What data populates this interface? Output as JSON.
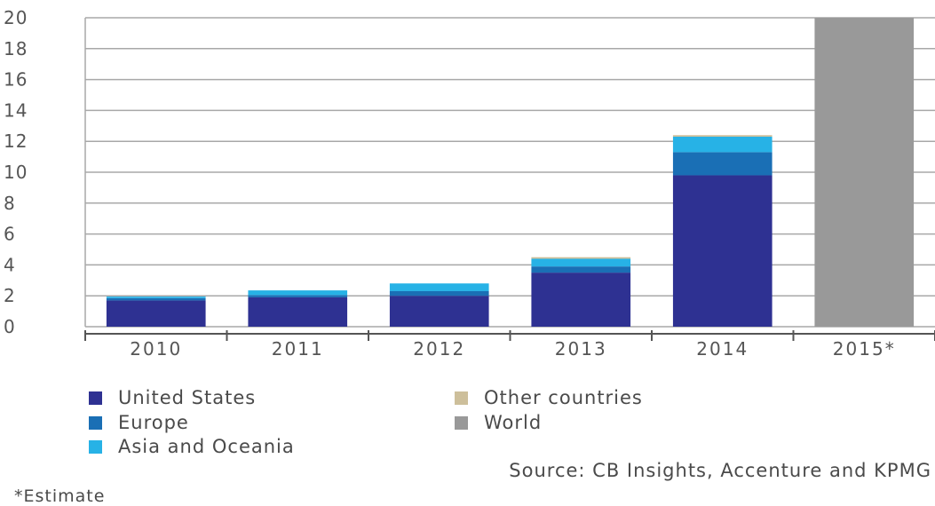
{
  "chart_data": {
    "type": "bar",
    "stacked": true,
    "categories": [
      "2010",
      "2011",
      "2012",
      "2013",
      "2014",
      "2015*"
    ],
    "series": [
      {
        "name": "United States",
        "color": "#2e3192",
        "values": [
          1.7,
          1.9,
          2.0,
          3.5,
          9.8,
          0
        ]
      },
      {
        "name": "Europe",
        "color": "#1a6fb5",
        "values": [
          0.15,
          0.15,
          0.3,
          0.4,
          1.5,
          0
        ]
      },
      {
        "name": "Asia and Oceania",
        "color": "#27b2e6",
        "values": [
          0.1,
          0.3,
          0.5,
          0.5,
          1.0,
          0
        ]
      },
      {
        "name": "Other countries",
        "color": "#cdbf9b",
        "values": [
          0.0,
          0.0,
          0.0,
          0.1,
          0.1,
          0
        ]
      },
      {
        "name": "World",
        "color": "#999999",
        "values": [
          0,
          0,
          0,
          0,
          0,
          20
        ]
      }
    ],
    "ylim": [
      0,
      20
    ],
    "yticks": [
      "0",
      "2",
      "4",
      "6",
      "8",
      "10",
      "12",
      "14",
      "16",
      "18",
      "20"
    ],
    "grid": true,
    "legend_position": "bottom",
    "title": "",
    "xlabel": "",
    "ylabel": ""
  },
  "legend": {
    "united_states": "United States",
    "europe": "Europe",
    "asia_oceania": "Asia and Oceania",
    "other_countries": "Other countries",
    "world": "World"
  },
  "source": "Source: CB Insights, Accenture and KPMG",
  "footnote": "*Estimate"
}
